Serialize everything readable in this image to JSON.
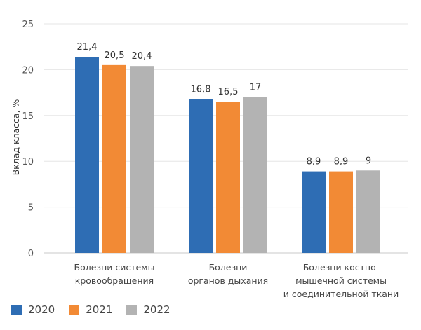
{
  "chart_data": {
    "type": "bar",
    "ylabel": "Вклад класса, %",
    "ylim": [
      0,
      25
    ],
    "yticks": [
      "0",
      "5",
      "10",
      "15",
      "20",
      "25"
    ],
    "grid": true,
    "legend_position": "bottom-left",
    "categories": [
      [
        "Болезни системы",
        "кровообращения"
      ],
      [
        "Болезни",
        "органов дыхания"
      ],
      [
        "Болезни костно-",
        "мышечной системы",
        "и соединительной ткани"
      ]
    ],
    "series": [
      {
        "name": "2020",
        "color": "#2e6db4",
        "values": [
          21.4,
          16.8,
          8.9
        ],
        "labels": [
          "21,4",
          "16,8",
          "8,9"
        ]
      },
      {
        "name": "2021",
        "color": "#f28a35",
        "values": [
          20.5,
          16.5,
          8.9
        ],
        "labels": [
          "20,5",
          "16,5",
          "8,9"
        ]
      },
      {
        "name": "2022",
        "color": "#b3b3b3",
        "values": [
          20.4,
          17,
          9
        ],
        "labels": [
          "20,4",
          "17",
          "9"
        ]
      }
    ]
  }
}
